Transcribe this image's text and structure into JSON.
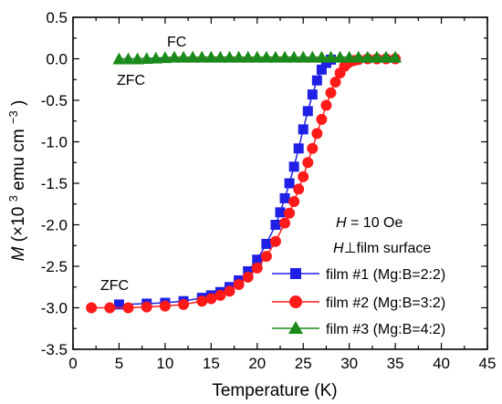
{
  "chart_data": {
    "type": "scatter",
    "xlabel": "Temperature (K)",
    "ylabel": {
      "symbol": "M",
      "prefix": "(×10",
      "exp": "3",
      "unit": " emu cm",
      "unit_exp": "−3",
      "suffix": ")"
    },
    "xlim": [
      0,
      45
    ],
    "ylim": [
      -3.5,
      0.5
    ],
    "xticks": [
      0,
      5,
      10,
      15,
      20,
      25,
      30,
      35,
      40,
      45
    ],
    "yticks": [
      0.5,
      0.0,
      -0.5,
      -1.0,
      -1.5,
      -2.0,
      -2.5,
      -3.0,
      -3.5
    ],
    "xtick_labels": [
      "0",
      "5",
      "10",
      "15",
      "20",
      "25",
      "30",
      "35",
      "40",
      "45"
    ],
    "ytick_labels": [
      "0.5",
      "0.0",
      "-0.5",
      "-1.0",
      "-1.5",
      "-2.0",
      "-2.5",
      "-3.0",
      "-3.5"
    ],
    "grid": false,
    "legend_position": "bottom-right",
    "annotations": {
      "fc": "FC",
      "zfc_top": "ZFC",
      "zfc_bottom": "ZFC",
      "field_symbol": "H",
      "field_value": " = 10 Oe",
      "orientation_symbol": "H",
      "orientation_text": "⊥film surface"
    },
    "series": [
      {
        "name": "film #1 (Mg:B=2:2)",
        "color": "#1f1fe6",
        "marker": "square",
        "zfc": {
          "x": [
            5,
            8,
            10,
            12,
            14,
            15,
            16,
            17,
            18,
            19,
            20,
            21,
            22,
            22.5,
            23,
            23.5,
            24,
            24.5,
            25,
            25.5,
            26,
            26.5,
            27,
            27.5,
            28
          ],
          "y": [
            -2.96,
            -2.95,
            -2.94,
            -2.92,
            -2.88,
            -2.85,
            -2.81,
            -2.75,
            -2.67,
            -2.56,
            -2.42,
            -2.23,
            -2.0,
            -1.85,
            -1.68,
            -1.5,
            -1.3,
            -1.08,
            -0.85,
            -0.63,
            -0.43,
            -0.26,
            -0.13,
            -0.05,
            -0.01
          ]
        },
        "fc": {
          "x": [
            5,
            10,
            15,
            20,
            25,
            30,
            35
          ],
          "y": [
            0.0,
            0.0,
            0.0,
            0.0,
            0.0,
            0.0,
            0.0
          ]
        }
      },
      {
        "name": "film #2 (Mg:B=3:2)",
        "color": "#ff1a1a",
        "marker": "circle",
        "zfc": {
          "x": [
            2,
            4,
            6,
            8,
            10,
            12,
            14,
            15,
            16,
            17,
            18,
            19,
            20,
            21,
            22,
            23,
            23.5,
            24,
            24.5,
            25,
            25.5,
            26,
            26.5,
            27,
            27.5,
            28,
            28.5,
            29,
            29.5,
            30,
            30.5,
            31,
            32,
            33,
            34,
            35
          ],
          "y": [
            -3.0,
            -3.0,
            -3.0,
            -2.99,
            -2.98,
            -2.96,
            -2.92,
            -2.89,
            -2.85,
            -2.8,
            -2.72,
            -2.63,
            -2.52,
            -2.38,
            -2.2,
            -1.98,
            -1.86,
            -1.72,
            -1.57,
            -1.42,
            -1.25,
            -1.08,
            -0.9,
            -0.73,
            -0.56,
            -0.41,
            -0.28,
            -0.17,
            -0.09,
            -0.04,
            -0.02,
            -0.01,
            0.0,
            0.0,
            0.0,
            0.0
          ]
        },
        "fc": {
          "x": [
            10,
            15,
            20,
            25,
            30,
            35
          ],
          "y": [
            0.0,
            0.0,
            0.0,
            0.0,
            0.0,
            0.0
          ]
        }
      },
      {
        "name": "film #3 (Mg:B=4:2)",
        "color": "#1a8a1a",
        "marker": "triangle",
        "zfc": {
          "x": [
            5,
            6,
            7,
            8,
            9,
            10,
            11,
            12,
            13,
            14,
            15,
            16,
            17,
            18,
            19,
            20,
            21,
            22,
            23,
            24,
            25,
            26,
            27,
            28,
            29,
            30,
            31,
            32,
            33,
            34,
            35
          ],
          "y": [
            0.0,
            0.0,
            0.0,
            0.005,
            0.01,
            0.015,
            0.02,
            0.02,
            0.02,
            0.02,
            0.02,
            0.02,
            0.02,
            0.02,
            0.02,
            0.02,
            0.02,
            0.02,
            0.02,
            0.02,
            0.02,
            0.02,
            0.02,
            0.02,
            0.02,
            0.02,
            0.02,
            0.02,
            0.02,
            0.02,
            0.02
          ]
        },
        "fc": {
          "x": [],
          "y": []
        }
      }
    ]
  }
}
